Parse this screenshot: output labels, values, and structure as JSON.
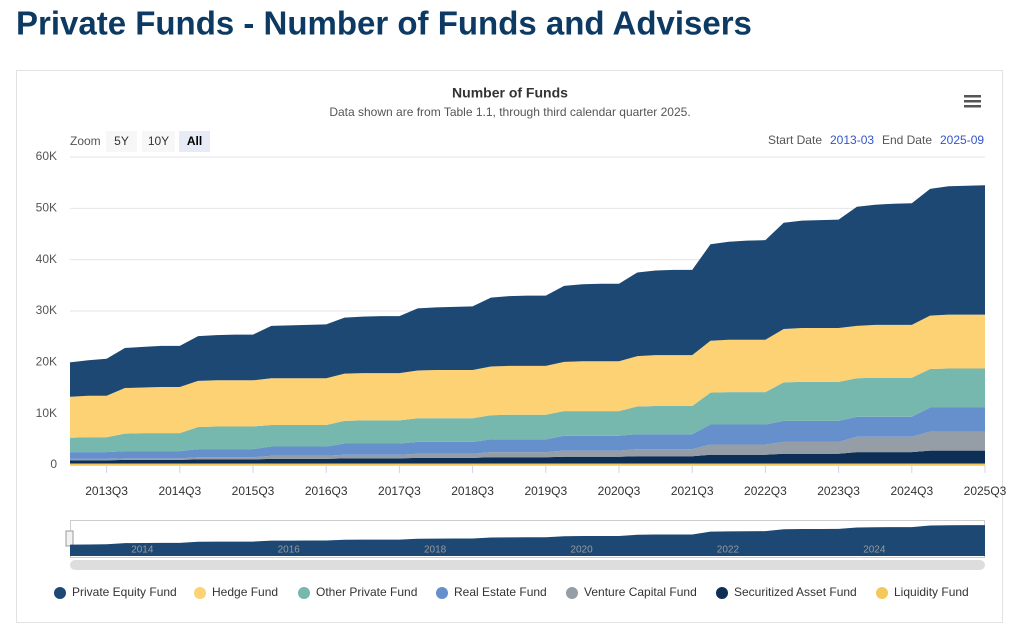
{
  "header": {
    "title": "Private Funds - Number of Funds and Advisers"
  },
  "controls": {
    "zoom_label": "Zoom",
    "buttons": [
      "5Y",
      "10Y",
      "All"
    ],
    "start_label": "Start Date",
    "start_value": "2013-03",
    "end_label": "End Date",
    "end_value": "2025-09"
  },
  "chart_data": {
    "type": "stacked-area",
    "title": "Number of Funds",
    "subtitle": "Data shown are from Table 1.1, through third calendar quarter 2025.",
    "categories": [
      null,
      null,
      "2013Q3",
      null,
      null,
      null,
      "2014Q3",
      null,
      null,
      null,
      "2015Q3",
      null,
      null,
      null,
      "2016Q3",
      null,
      null,
      null,
      "2017Q3",
      null,
      null,
      null,
      "2018Q3",
      null,
      null,
      null,
      "2019Q3",
      null,
      null,
      null,
      "2020Q3",
      null,
      null,
      null,
      "2021Q3",
      null,
      null,
      null,
      "2022Q3",
      null,
      null,
      null,
      "2023Q3",
      null,
      null,
      null,
      "2024Q3",
      null,
      null,
      null,
      "2025Q3"
    ],
    "ylim": [
      0,
      60000
    ],
    "yticks": [
      0,
      {
        "value": 10000,
        "label": "10K"
      },
      {
        "value": 20000,
        "label": "20K"
      },
      {
        "value": 30000,
        "label": "30K"
      },
      {
        "value": 40000,
        "label": "40K"
      },
      {
        "value": 50000,
        "label": "50K"
      },
      {
        "value": 60000,
        "label": "60K"
      }
    ],
    "grid": true,
    "legend": "bottom",
    "series": [
      {
        "name": "Private Equity Fund",
        "color": "#1d4873",
        "values": [
          6700,
          6900,
          7200,
          7800,
          7900,
          8000,
          8000,
          8700,
          8800,
          8900,
          8900,
          10200,
          10300,
          10400,
          10500,
          10900,
          11000,
          11100,
          11100,
          12100,
          12200,
          12300,
          12400,
          13400,
          13600,
          13700,
          13700,
          14800,
          15000,
          15100,
          15100,
          16300,
          16500,
          16600,
          16600,
          18800,
          19100,
          19300,
          19400,
          20700,
          20900,
          21000,
          21100,
          23200,
          23400,
          23600,
          23700,
          24700,
          25000,
          25100,
          25200
        ]
      },
      {
        "name": "Hedge Fund",
        "color": "#fdd275",
        "values": [
          8000,
          8100,
          8100,
          8900,
          8900,
          9000,
          9000,
          9000,
          9000,
          9000,
          9000,
          9100,
          9100,
          9100,
          9100,
          9200,
          9200,
          9200,
          9200,
          9300,
          9400,
          9400,
          9400,
          9500,
          9500,
          9500,
          9500,
          9600,
          9700,
          9700,
          9700,
          9800,
          9900,
          9900,
          9900,
          10100,
          10200,
          10200,
          10200,
          10400,
          10500,
          10500,
          10500,
          10200,
          10300,
          10300,
          10300,
          10400,
          10500,
          10500,
          10500
        ]
      },
      {
        "name": "Other Private Fund",
        "color": "#76b7ae",
        "values": [
          2800,
          2900,
          2900,
          3400,
          3500,
          3500,
          3500,
          4300,
          4400,
          4400,
          4400,
          4200,
          4200,
          4200,
          4200,
          4400,
          4500,
          4500,
          4500,
          4600,
          4600,
          4600,
          4600,
          4700,
          4800,
          4800,
          4800,
          4800,
          4800,
          4800,
          4800,
          5400,
          5500,
          5500,
          5500,
          6200,
          6300,
          6300,
          6300,
          7500,
          7600,
          7600,
          7600,
          7500,
          7600,
          7600,
          7600,
          7500,
          7600,
          7600,
          7600
        ]
      },
      {
        "name": "Real Estate Fund",
        "color": "#6690cc",
        "values": [
          1300,
          1300,
          1300,
          1400,
          1400,
          1400,
          1400,
          1600,
          1600,
          1600,
          1600,
          1800,
          1800,
          1800,
          1800,
          2200,
          2200,
          2200,
          2200,
          2300,
          2300,
          2300,
          2300,
          2500,
          2500,
          2500,
          2500,
          2900,
          2900,
          2900,
          2900,
          2900,
          2900,
          2900,
          2900,
          3900,
          3900,
          3900,
          3900,
          4100,
          4100,
          4100,
          4100,
          3900,
          3900,
          3900,
          3900,
          4700,
          4700,
          4700,
          4700
        ]
      },
      {
        "name": "Venture Capital Fund",
        "color": "#959da6",
        "values": [
          300,
          300,
          300,
          300,
          300,
          300,
          300,
          400,
          400,
          400,
          400,
          600,
          600,
          600,
          600,
          700,
          700,
          700,
          700,
          800,
          800,
          800,
          800,
          1000,
          1000,
          1000,
          1000,
          1200,
          1200,
          1200,
          1200,
          1400,
          1400,
          1400,
          1400,
          2000,
          2000,
          2000,
          2000,
          2300,
          2300,
          2300,
          2300,
          3000,
          3000,
          3000,
          3000,
          3700,
          3700,
          3700,
          3700
        ]
      },
      {
        "name": "Securitized Asset Fund",
        "color": "#0d2f55",
        "values": [
          600,
          600,
          600,
          700,
          700,
          700,
          700,
          800,
          800,
          800,
          800,
          900,
          900,
          900,
          900,
          1000,
          1000,
          1000,
          1000,
          1100,
          1100,
          1100,
          1100,
          1200,
          1200,
          1200,
          1200,
          1300,
          1300,
          1300,
          1300,
          1400,
          1400,
          1400,
          1400,
          1700,
          1700,
          1700,
          1700,
          1900,
          1900,
          1900,
          1900,
          2200,
          2200,
          2200,
          2200,
          2500,
          2500,
          2500,
          2500
        ]
      },
      {
        "name": "Liquidity Fund",
        "color": "#f5c85a",
        "values": [
          300,
          300,
          300,
          300,
          300,
          300,
          300,
          300,
          300,
          300,
          300,
          300,
          300,
          300,
          300,
          300,
          300,
          300,
          300,
          300,
          300,
          300,
          300,
          300,
          300,
          300,
          300,
          300,
          300,
          300,
          300,
          300,
          300,
          300,
          300,
          300,
          300,
          300,
          300,
          300,
          300,
          300,
          300,
          300,
          300,
          300,
          300,
          300,
          300,
          300,
          300
        ]
      }
    ],
    "navigator": {
      "labels": [
        "2014",
        "2016",
        "2018",
        "2020",
        "2022",
        "2024"
      ]
    }
  }
}
